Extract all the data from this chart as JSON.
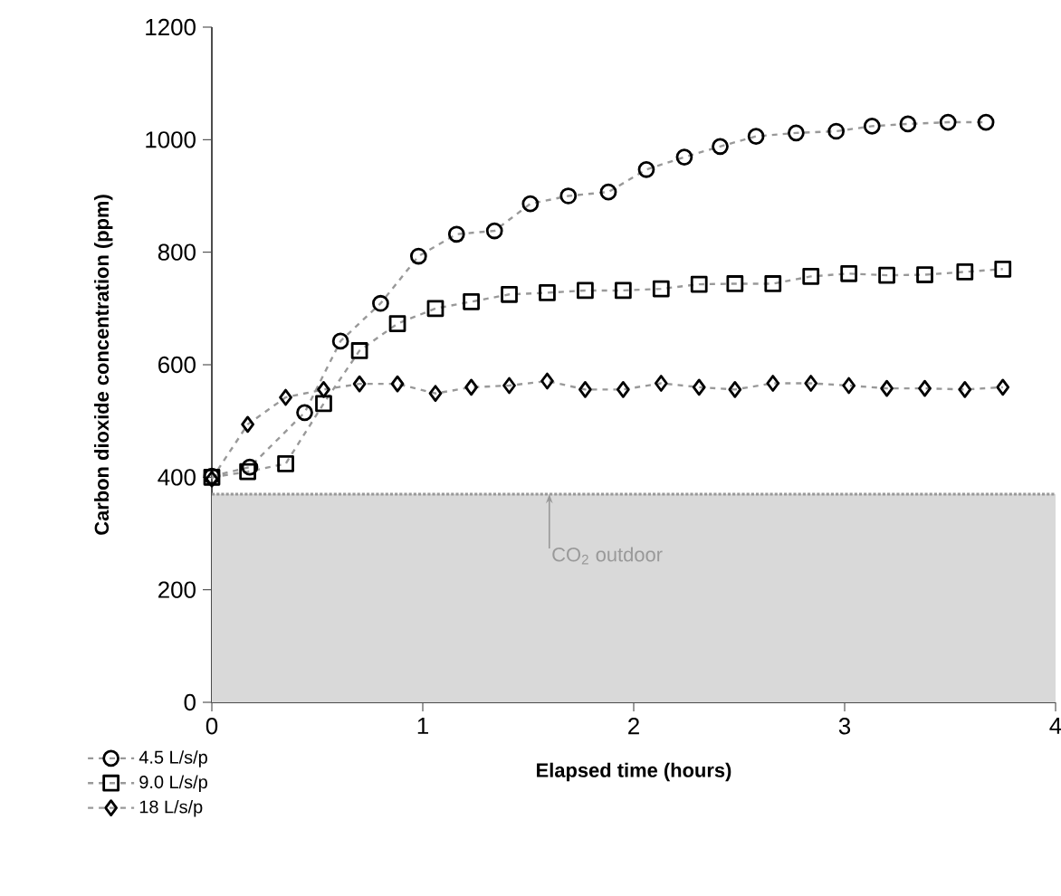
{
  "chart_data": {
    "type": "line",
    "xlabel": "Elapsed time (hours)",
    "ylabel": "Carbon dioxide concentration (ppm)",
    "xlim": [
      0,
      4
    ],
    "xticks": [
      0,
      1,
      2,
      3,
      4
    ],
    "ylim": [
      0,
      1200
    ],
    "yticks": [
      0,
      200,
      400,
      600,
      800,
      1000,
      1200
    ],
    "grid": false,
    "legend": "bottom left",
    "line_style": "dashed",
    "series": [
      {
        "name": "4.5 L/s/p",
        "color": "#000000",
        "marker": "circle",
        "x": [
          0,
          0.18,
          0.44,
          0.61,
          0.8,
          0.98,
          1.16,
          1.34,
          1.51,
          1.69,
          1.88,
          2.06,
          2.24,
          2.41,
          2.58,
          2.77,
          2.96,
          3.13,
          3.3,
          3.49,
          3.67
        ],
        "values": [
          402,
          418,
          515,
          642,
          709,
          793,
          832,
          838,
          886,
          900,
          907,
          947,
          969,
          988,
          1006,
          1012,
          1015,
          1024,
          1028,
          1031,
          1031
        ]
      },
      {
        "name": "9.0 L/s/p",
        "color": "#000000",
        "marker": "square",
        "x": [
          0,
          0.17,
          0.35,
          0.53,
          0.7,
          0.88,
          1.06,
          1.23,
          1.41,
          1.59,
          1.77,
          1.95,
          2.13,
          2.31,
          2.48,
          2.66,
          2.84,
          3.02,
          3.2,
          3.38,
          3.57,
          3.75
        ],
        "values": [
          400,
          410,
          424,
          531,
          625,
          673,
          700,
          712,
          725,
          728,
          732,
          732,
          735,
          743,
          744,
          744,
          757,
          762,
          759,
          760,
          765,
          770
        ]
      },
      {
        "name": "18 L/s/p",
        "color": "#000000",
        "marker": "diamond",
        "x": [
          0,
          0.17,
          0.35,
          0.53,
          0.7,
          0.88,
          1.06,
          1.23,
          1.41,
          1.59,
          1.77,
          1.95,
          2.13,
          2.31,
          2.48,
          2.66,
          2.84,
          3.02,
          3.2,
          3.38,
          3.57,
          3.75
        ],
        "values": [
          397,
          494,
          542,
          556,
          566,
          566,
          549,
          560,
          563,
          571,
          556,
          556,
          567,
          560,
          556,
          567,
          567,
          563,
          558,
          558,
          556,
          560
        ]
      }
    ],
    "bands": [
      {
        "axis": "y",
        "from": 0,
        "to": 370,
        "color": "#d9d9d9"
      }
    ],
    "ref_lines": [
      {
        "axis": "y",
        "value": 370,
        "label": "CO$_{2}$ outdoor",
        "color": "#999999",
        "line_style": "dotted"
      }
    ]
  }
}
